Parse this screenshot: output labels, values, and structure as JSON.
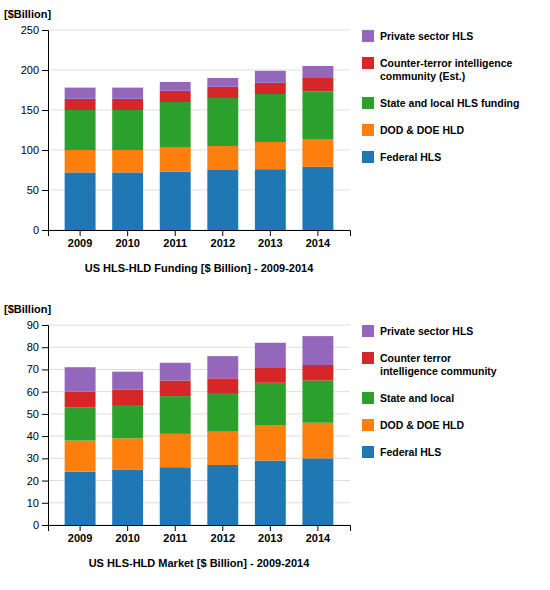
{
  "chart_data": [
    {
      "type": "bar",
      "stacked": true,
      "xlabel": "US HLS-HLD Funding [$ Billion] - 2009-2014",
      "ylabel": "[$Billion]",
      "categories": [
        "2009",
        "2010",
        "2011",
        "2012",
        "2013",
        "2014"
      ],
      "series": [
        {
          "name": "Federal HLS",
          "values": [
            72,
            72,
            73,
            75,
            76,
            79
          ]
        },
        {
          "name": "DOD & DOE HLD",
          "values": [
            28,
            28,
            30,
            30,
            34,
            34
          ]
        },
        {
          "name": "State and local HLS funding",
          "values": [
            50,
            50,
            57,
            60,
            60,
            60
          ]
        },
        {
          "name": "Counter-terror intelligence\ncommunity (Est.)",
          "values": [
            14,
            14,
            14,
            14,
            14,
            17
          ]
        },
        {
          "name": "Private sector HLS",
          "values": [
            14,
            14,
            11,
            11,
            15,
            15
          ]
        }
      ],
      "ylim": [
        0,
        250
      ],
      "yticks": [
        0,
        50,
        100,
        150,
        200,
        250
      ],
      "grid": true,
      "legend": "right"
    },
    {
      "type": "bar",
      "stacked": true,
      "xlabel": "US HLS-HLD Market [$ Billion] - 2009-2014",
      "ylabel": "[$Billion]",
      "categories": [
        "2009",
        "2010",
        "2011",
        "2012",
        "2013",
        "2014"
      ],
      "series": [
        {
          "name": "Federal HLS",
          "values": [
            24,
            25,
            26,
            27,
            29,
            30
          ]
        },
        {
          "name": "DOD & DOE HLD",
          "values": [
            14,
            14,
            15,
            15,
            16,
            16
          ]
        },
        {
          "name": "State and local",
          "values": [
            15,
            15,
            17,
            17,
            19,
            19
          ]
        },
        {
          "name": "Counter terror\nintelligence community",
          "values": [
            7,
            7,
            7,
            7,
            7,
            7
          ]
        },
        {
          "name": "Private sector HLS",
          "values": [
            11,
            8,
            8,
            10,
            11,
            13
          ]
        }
      ],
      "ylim": [
        0,
        90
      ],
      "yticks": [
        0,
        10,
        20,
        30,
        40,
        50,
        60,
        70,
        80,
        90
      ],
      "grid": true,
      "legend": "right"
    }
  ]
}
